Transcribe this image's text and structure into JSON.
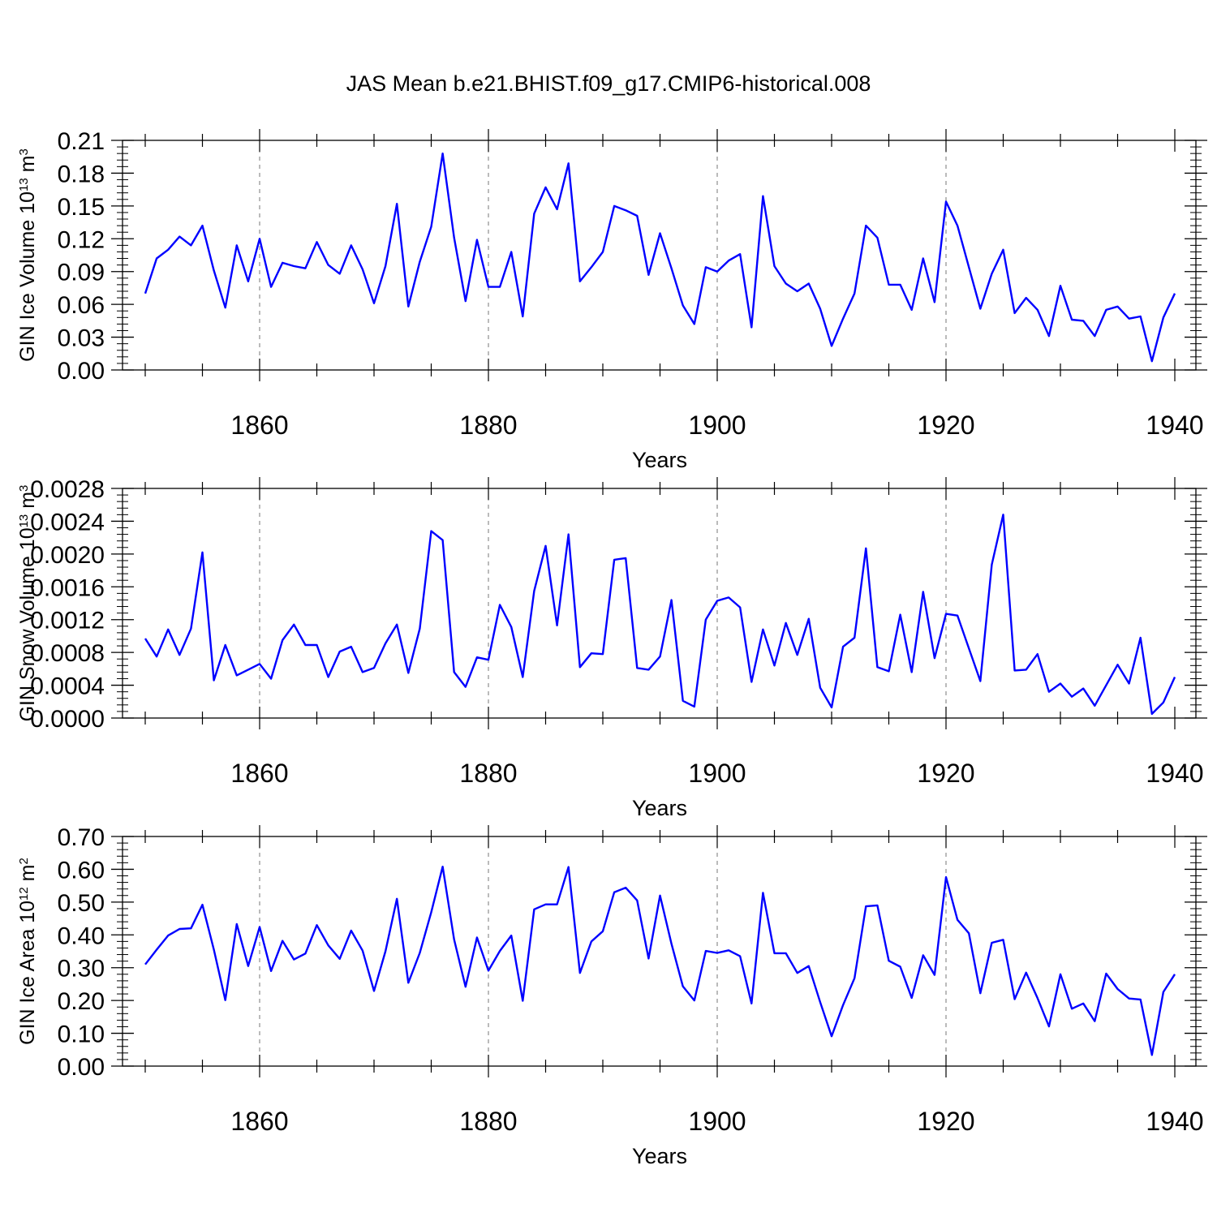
{
  "title": "JAS Mean b.e21.BHIST.f09_g17.CMIP6-historical.008",
  "line_color": "#0000ff",
  "chart_data": [
    {
      "type": "line",
      "xlabel": "Years",
      "ylabel": {
        "main": "GIN Ice Volume 10",
        "exp": "13",
        "unit": " m",
        "unit_exp": "3"
      },
      "xlim": [
        1850,
        1940
      ],
      "ylim": [
        0,
        0.21
      ],
      "x_ticks": [
        1860,
        1880,
        1900,
        1920,
        1940
      ],
      "y_ticks": [
        "0.00",
        "0.03",
        "0.06",
        "0.09",
        "0.12",
        "0.15",
        "0.18",
        "0.21"
      ],
      "y_tick_values": [
        0,
        0.03,
        0.06,
        0.09,
        0.12,
        0.15,
        0.18,
        0.21
      ],
      "x_start": 1850,
      "values": [
        0.07,
        0.102,
        0.11,
        0.122,
        0.114,
        0.132,
        0.091,
        0.057,
        0.114,
        0.081,
        0.12,
        0.076,
        0.098,
        0.095,
        0.093,
        0.117,
        0.096,
        0.088,
        0.114,
        0.092,
        0.061,
        0.095,
        0.152,
        0.058,
        0.099,
        0.131,
        0.198,
        0.121,
        0.063,
        0.119,
        0.076,
        0.076,
        0.108,
        0.049,
        0.143,
        0.167,
        0.147,
        0.189,
        0.081,
        0.094,
        0.108,
        0.15,
        0.146,
        0.141,
        0.087,
        0.125,
        0.093,
        0.059,
        0.042,
        0.094,
        0.09,
        0.1,
        0.106,
        0.039,
        0.159,
        0.095,
        0.079,
        0.072,
        0.079,
        0.056,
        0.022,
        0.047,
        0.07,
        0.132,
        0.121,
        0.078,
        0.078,
        0.055,
        0.102,
        0.062,
        0.154,
        0.132,
        0.094,
        0.056,
        0.088,
        0.11,
        0.052,
        0.066,
        0.055,
        0.031,
        0.077,
        0.046,
        0.045,
        0.031,
        0.055,
        0.058,
        0.047,
        0.049,
        0.008,
        0.048,
        0.07
      ]
    },
    {
      "type": "line",
      "xlabel": "Years",
      "ylabel": {
        "main": "GIN Snow Volume 10",
        "exp": "13",
        "unit": " m",
        "unit_exp": "3"
      },
      "xlim": [
        1850,
        1940
      ],
      "ylim": [
        0,
        0.0028
      ],
      "x_ticks": [
        1860,
        1880,
        1900,
        1920,
        1940
      ],
      "y_ticks": [
        "0.0000",
        "0.0004",
        "0.0008",
        "0.0012",
        "0.0016",
        "0.0020",
        "0.0024",
        "0.0028"
      ],
      "y_tick_values": [
        0,
        0.0004,
        0.0008,
        0.0012,
        0.0016,
        0.002,
        0.0024,
        0.0028
      ],
      "x_start": 1850,
      "values": [
        0.00097,
        0.00075,
        0.00108,
        0.00077,
        0.00109,
        0.00202,
        0.00046,
        0.00089,
        0.00052,
        0.00059,
        0.00066,
        0.00048,
        0.00095,
        0.00114,
        0.00089,
        0.00089,
        0.0005,
        0.00081,
        0.00087,
        0.00056,
        0.00061,
        0.00091,
        0.00114,
        0.00055,
        0.00109,
        0.00228,
        0.00217,
        0.00056,
        0.00038,
        0.00074,
        0.00071,
        0.00138,
        0.00111,
        0.0005,
        0.00155,
        0.0021,
        0.00113,
        0.00224,
        0.00062,
        0.00079,
        0.00078,
        0.00193,
        0.00195,
        0.00061,
        0.00059,
        0.00075,
        0.00144,
        0.00021,
        0.00014,
        0.0012,
        0.00143,
        0.00147,
        0.00135,
        0.00044,
        0.00108,
        0.00064,
        0.00116,
        0.00077,
        0.00121,
        0.00037,
        0.00013,
        0.00087,
        0.00098,
        0.00207,
        0.00062,
        0.00057,
        0.00126,
        0.00056,
        0.00154,
        0.00073,
        0.00127,
        0.00125,
        0.00085,
        0.00045,
        0.00187,
        0.00248,
        0.00058,
        0.00059,
        0.00078,
        0.00032,
        0.00042,
        0.00026,
        0.00036,
        0.00015,
        0.0004,
        0.00065,
        0.00042,
        0.00098,
        5e-05,
        0.00019,
        0.0005
      ]
    },
    {
      "type": "line",
      "xlabel": "Years",
      "ylabel": {
        "main": "GIN Ice Area 10",
        "exp": "12",
        "unit": " m",
        "unit_exp": "2"
      },
      "xlim": [
        1850,
        1940
      ],
      "ylim": [
        0,
        0.7
      ],
      "x_ticks": [
        1860,
        1880,
        1900,
        1920,
        1940
      ],
      "y_ticks": [
        "0.00",
        "0.10",
        "0.20",
        "0.30",
        "0.40",
        "0.50",
        "0.60",
        "0.70"
      ],
      "y_tick_values": [
        0,
        0.1,
        0.2,
        0.3,
        0.4,
        0.5,
        0.6,
        0.7
      ],
      "x_start": 1850,
      "values": [
        0.31,
        0.355,
        0.398,
        0.418,
        0.42,
        0.492,
        0.355,
        0.201,
        0.433,
        0.305,
        0.424,
        0.29,
        0.382,
        0.325,
        0.343,
        0.43,
        0.368,
        0.327,
        0.413,
        0.352,
        0.229,
        0.35,
        0.51,
        0.254,
        0.345,
        0.469,
        0.608,
        0.386,
        0.242,
        0.392,
        0.291,
        0.351,
        0.398,
        0.199,
        0.478,
        0.493,
        0.493,
        0.607,
        0.284,
        0.38,
        0.411,
        0.53,
        0.544,
        0.505,
        0.328,
        0.52,
        0.373,
        0.243,
        0.2,
        0.351,
        0.345,
        0.353,
        0.335,
        0.191,
        0.528,
        0.344,
        0.344,
        0.284,
        0.305,
        0.195,
        0.091,
        0.186,
        0.268,
        0.487,
        0.49,
        0.321,
        0.303,
        0.208,
        0.338,
        0.278,
        0.576,
        0.446,
        0.405,
        0.222,
        0.376,
        0.385,
        0.204,
        0.285,
        0.207,
        0.121,
        0.28,
        0.175,
        0.191,
        0.137,
        0.282,
        0.235,
        0.206,
        0.203,
        0.034,
        0.226,
        0.28
      ]
    }
  ]
}
